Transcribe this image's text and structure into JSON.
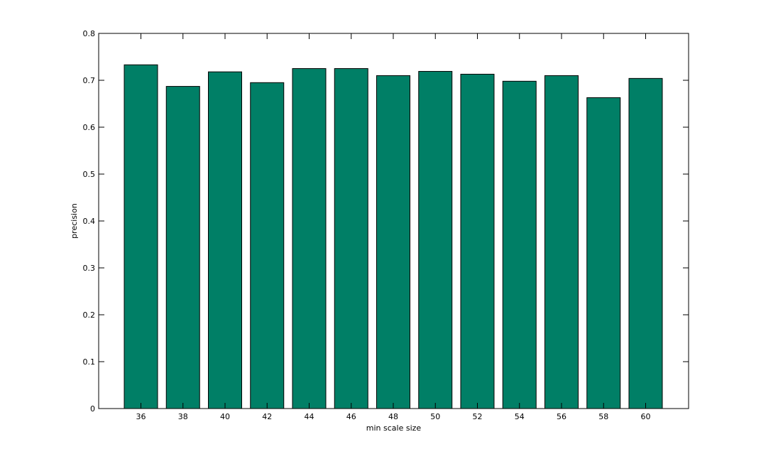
{
  "chart_data": {
    "type": "bar",
    "title": "",
    "xlabel": "min scale size",
    "ylabel": "precision",
    "categories": [
      "36",
      "38",
      "40",
      "42",
      "44",
      "46",
      "48",
      "50",
      "52",
      "54",
      "56",
      "58",
      "60"
    ],
    "values": [
      0.733,
      0.687,
      0.718,
      0.695,
      0.725,
      0.725,
      0.71,
      0.719,
      0.713,
      0.698,
      0.71,
      0.663,
      0.704
    ],
    "ylim": [
      0,
      0.8
    ],
    "yticks": [
      "0",
      "0.1",
      "0.2",
      "0.3",
      "0.4",
      "0.5",
      "0.6",
      "0.7",
      "0.8"
    ],
    "grid": false,
    "legend": "none",
    "bar_color": "#007f66",
    "bar_edge_color": "#000000"
  }
}
